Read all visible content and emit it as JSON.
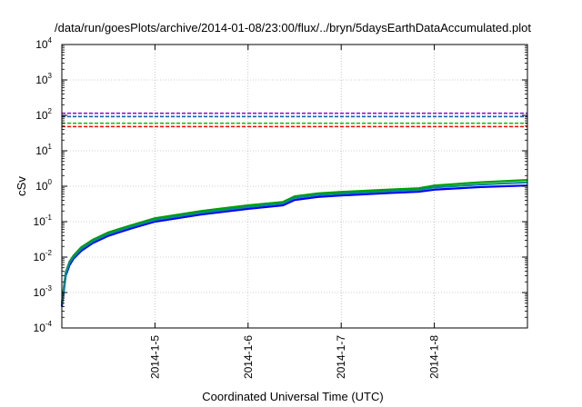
{
  "chart_data": {
    "type": "line",
    "title": "/data/run/goesPlots/archive/2014-01-08/23:00/flux/../bryn/5daysEarthDataAccumulated.plot",
    "xlabel": "Coordinated Universal Time (UTC)",
    "ylabel": "cSv",
    "yscale": "log",
    "ylim": [
      0.0001,
      10000
    ],
    "xlim": [
      "2014-01-04",
      "2014-01-09"
    ],
    "grid": true,
    "x_ticks": [
      "2014-1-5",
      "2014-1-6",
      "2014-1-7",
      "2014-1-8"
    ],
    "y_ticks": [
      {
        "base": "10",
        "exp": "-4",
        "value": 0.0001
      },
      {
        "base": "10",
        "exp": "-3",
        "value": 0.001
      },
      {
        "base": "10",
        "exp": "-2",
        "value": 0.01
      },
      {
        "base": "10",
        "exp": "-1",
        "value": 0.1
      },
      {
        "base": "10",
        "exp": "0",
        "value": 1
      },
      {
        "base": "10",
        "exp": "1",
        "value": 10
      },
      {
        "base": "10",
        "exp": "2",
        "value": 100
      },
      {
        "base": "10",
        "exp": "3",
        "value": 1000
      },
      {
        "base": "10",
        "exp": "4",
        "value": 10000
      }
    ],
    "reference_lines": [
      {
        "value": 115,
        "color": "#9400d3",
        "style": "dashed"
      },
      {
        "value": 92,
        "color": "#0060ad",
        "style": "dashed"
      },
      {
        "value": 60,
        "color": "#00c000",
        "style": "dashed"
      },
      {
        "value": 48,
        "color": "#ff0000",
        "style": "dashed"
      }
    ],
    "series": [
      {
        "color": "#0000ff",
        "x": [
          "2014-01-04 00:00",
          "2014-01-04 01:00",
          "2014-01-04 02:00",
          "2014-01-04 03:00",
          "2014-01-04 05:00",
          "2014-01-04 08:00",
          "2014-01-04 12:00",
          "2014-01-04 18:00",
          "2014-01-05 00:00",
          "2014-01-05 12:00",
          "2014-01-06 00:00",
          "2014-01-06 09:00",
          "2014-01-06 12:00",
          "2014-01-06 18:00",
          "2014-01-07 00:00",
          "2014-01-07 12:00",
          "2014-01-07 20:00",
          "2014-01-08 00:00",
          "2014-01-08 12:00",
          "2014-01-09 00:00"
        ],
        "y": [
          0.0004,
          0.003,
          0.006,
          0.009,
          0.015,
          0.025,
          0.04,
          0.065,
          0.1,
          0.16,
          0.23,
          0.29,
          0.41,
          0.5,
          0.55,
          0.64,
          0.7,
          0.8,
          0.95,
          1.05
        ]
      },
      {
        "color": "#00a000",
        "x": [
          "2014-01-04 00:00",
          "2014-01-04 01:00",
          "2014-01-04 02:00",
          "2014-01-04 03:00",
          "2014-01-04 05:00",
          "2014-01-04 08:00",
          "2014-01-04 12:00",
          "2014-01-04 18:00",
          "2014-01-05 00:00",
          "2014-01-05 12:00",
          "2014-01-06 00:00",
          "2014-01-06 09:00",
          "2014-01-06 12:00",
          "2014-01-06 18:00",
          "2014-01-07 00:00",
          "2014-01-07 12:00",
          "2014-01-07 20:00",
          "2014-01-08 00:00",
          "2014-01-08 12:00",
          "2014-01-09 00:00"
        ],
        "y": [
          0.0005,
          0.0037,
          0.0075,
          0.011,
          0.019,
          0.031,
          0.05,
          0.08,
          0.125,
          0.2,
          0.29,
          0.36,
          0.52,
          0.63,
          0.69,
          0.8,
          0.88,
          1.05,
          1.3,
          1.5
        ]
      },
      {
        "color": "#008b8b",
        "x": [
          "2014-01-04 00:00",
          "2014-01-04 01:00",
          "2014-01-04 02:00",
          "2014-01-04 03:00",
          "2014-01-04 05:00",
          "2014-01-04 08:00",
          "2014-01-04 12:00",
          "2014-01-04 18:00",
          "2014-01-05 00:00",
          "2014-01-05 12:00",
          "2014-01-06 00:00",
          "2014-01-06 09:00",
          "2014-01-06 12:00",
          "2014-01-06 18:00",
          "2014-01-07 00:00",
          "2014-01-07 12:00",
          "2014-01-07 20:00",
          "2014-01-08 00:00",
          "2014-01-08 12:00",
          "2014-01-09 00:00"
        ],
        "y": [
          0.00045,
          0.0034,
          0.007,
          0.01,
          0.017,
          0.028,
          0.045,
          0.073,
          0.112,
          0.18,
          0.26,
          0.33,
          0.47,
          0.57,
          0.62,
          0.72,
          0.79,
          0.93,
          1.12,
          1.28
        ]
      }
    ]
  }
}
